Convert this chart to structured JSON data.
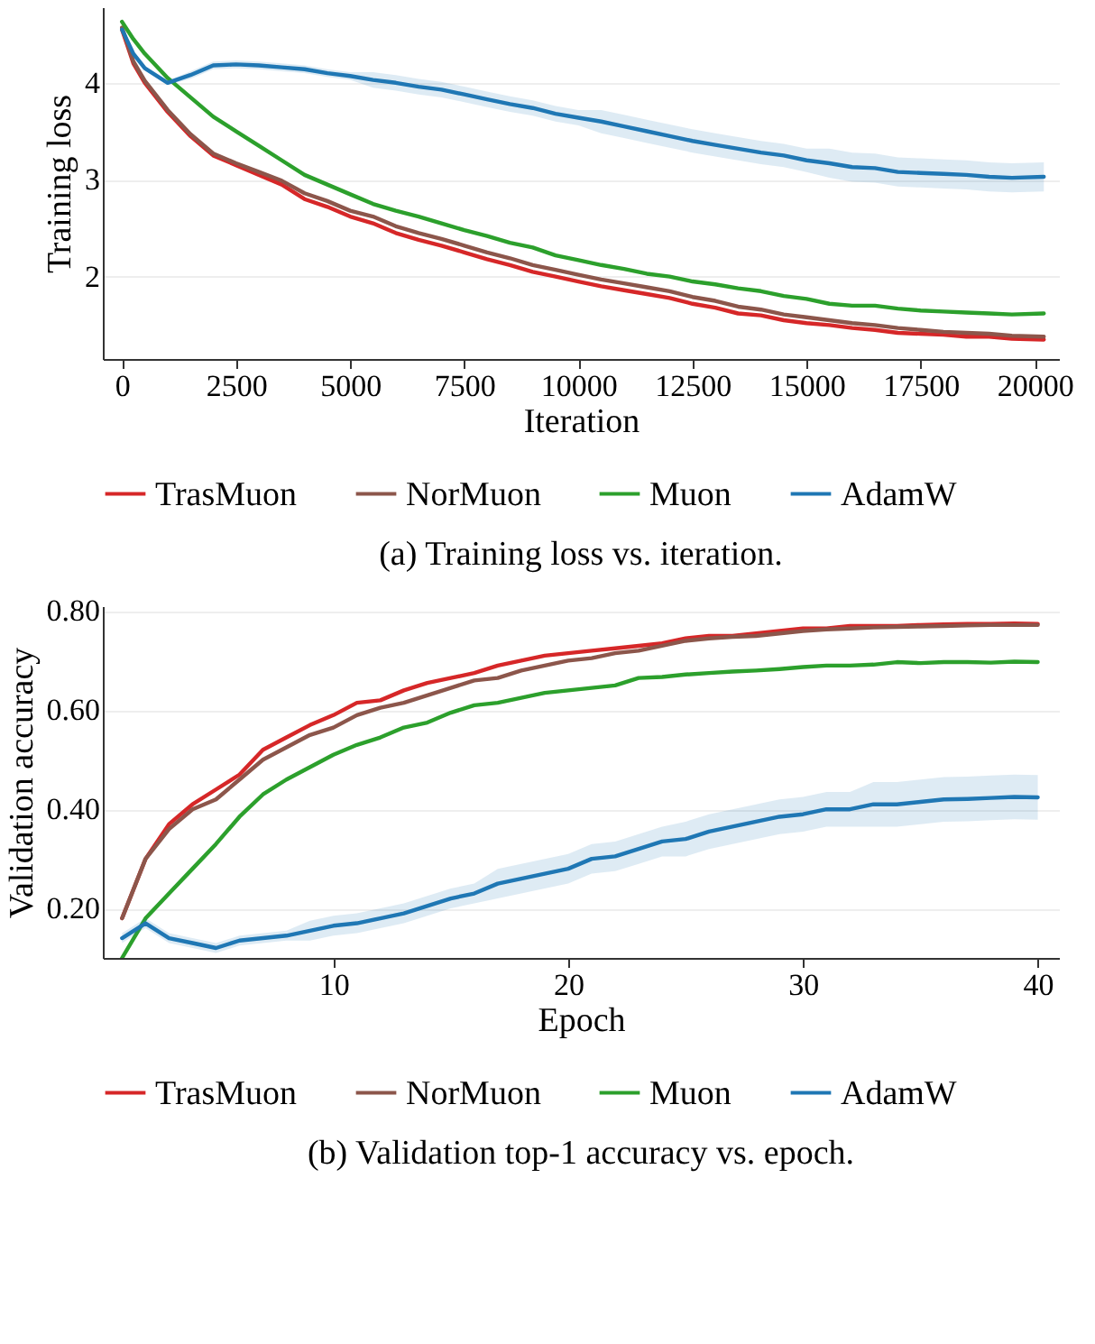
{
  "chart_data": [
    {
      "type": "line",
      "title": "(a) Training loss vs. iteration.",
      "xlabel": "Iteration",
      "ylabel": "Training loss",
      "legend": "bottom",
      "grid": "y",
      "line_style": "solid",
      "x": [
        0,
        250,
        500,
        1000,
        1500,
        2000,
        2500,
        3000,
        3500,
        4000,
        4500,
        5000,
        5500,
        6000,
        6500,
        7000,
        7500,
        8000,
        8500,
        9000,
        9500,
        10000,
        10500,
        11000,
        11500,
        12000,
        12500,
        13000,
        13500,
        14000,
        14500,
        15000,
        15500,
        16000,
        16500,
        17000,
        17500,
        18000,
        18500,
        19000,
        19500,
        20200
      ],
      "xlim": [
        -420,
        20530
      ],
      "xticks": [
        0,
        2500,
        5000,
        7500,
        10000,
        12500,
        15000,
        17500,
        20000
      ],
      "ylim": [
        1.15,
        4.78
      ],
      "yticks": [
        2,
        3,
        4
      ],
      "series": [
        {
          "name": "TrasMuon",
          "color": "#d62728",
          "values": [
            4.55,
            4.2,
            4.0,
            3.7,
            3.45,
            3.25,
            3.15,
            3.05,
            2.95,
            2.8,
            2.72,
            2.62,
            2.55,
            2.45,
            2.38,
            2.32,
            2.25,
            2.18,
            2.12,
            2.05,
            2.0,
            1.95,
            1.9,
            1.86,
            1.82,
            1.78,
            1.72,
            1.68,
            1.62,
            1.6,
            1.55,
            1.52,
            1.5,
            1.47,
            1.45,
            1.42,
            1.41,
            1.4,
            1.38,
            1.38,
            1.36,
            1.35
          ]
        },
        {
          "name": "NorMuon",
          "color": "#8c564b",
          "values": [
            4.57,
            4.22,
            4.02,
            3.72,
            3.47,
            3.27,
            3.17,
            3.08,
            2.99,
            2.86,
            2.78,
            2.68,
            2.62,
            2.52,
            2.45,
            2.39,
            2.32,
            2.25,
            2.19,
            2.12,
            2.07,
            2.02,
            1.97,
            1.93,
            1.89,
            1.85,
            1.79,
            1.75,
            1.69,
            1.66,
            1.61,
            1.58,
            1.55,
            1.52,
            1.5,
            1.47,
            1.45,
            1.43,
            1.42,
            1.41,
            1.39,
            1.38
          ]
        },
        {
          "name": "Muon",
          "color": "#2ca02c",
          "values": [
            4.63,
            4.45,
            4.3,
            4.05,
            3.85,
            3.65,
            3.5,
            3.35,
            3.2,
            3.05,
            2.95,
            2.85,
            2.75,
            2.68,
            2.62,
            2.55,
            2.48,
            2.42,
            2.35,
            2.3,
            2.22,
            2.17,
            2.12,
            2.08,
            2.03,
            2.0,
            1.95,
            1.92,
            1.88,
            1.85,
            1.8,
            1.77,
            1.72,
            1.7,
            1.7,
            1.67,
            1.65,
            1.64,
            1.63,
            1.62,
            1.61,
            1.62
          ]
        },
        {
          "name": "AdamW",
          "color": "#1f77b4",
          "values": [
            4.55,
            4.3,
            4.15,
            4.0,
            4.08,
            4.18,
            4.19,
            4.18,
            4.16,
            4.14,
            4.1,
            4.07,
            4.03,
            4.0,
            3.96,
            3.93,
            3.88,
            3.83,
            3.78,
            3.74,
            3.68,
            3.64,
            3.6,
            3.55,
            3.5,
            3.45,
            3.4,
            3.36,
            3.32,
            3.28,
            3.25,
            3.2,
            3.17,
            3.13,
            3.12,
            3.08,
            3.07,
            3.06,
            3.05,
            3.03,
            3.02,
            3.03
          ],
          "upper": [
            4.57,
            4.32,
            4.17,
            4.02,
            4.12,
            4.22,
            4.23,
            4.22,
            4.2,
            4.18,
            4.14,
            4.11,
            4.11,
            4.08,
            4.04,
            4.01,
            3.96,
            3.91,
            3.86,
            3.82,
            3.76,
            3.72,
            3.72,
            3.67,
            3.62,
            3.57,
            3.52,
            3.48,
            3.44,
            3.4,
            3.37,
            3.32,
            3.32,
            3.28,
            3.27,
            3.23,
            3.22,
            3.21,
            3.2,
            3.18,
            3.17,
            3.18
          ],
          "lower": [
            4.53,
            4.28,
            4.13,
            3.98,
            4.04,
            4.14,
            4.15,
            4.14,
            4.12,
            4.1,
            4.06,
            4.03,
            3.95,
            3.92,
            3.88,
            3.85,
            3.8,
            3.75,
            3.7,
            3.66,
            3.6,
            3.56,
            3.48,
            3.43,
            3.38,
            3.33,
            3.28,
            3.24,
            3.2,
            3.16,
            3.13,
            3.08,
            3.02,
            2.98,
            2.97,
            2.93,
            2.92,
            2.91,
            2.9,
            2.88,
            2.87,
            2.88
          ]
        }
      ]
    },
    {
      "type": "line",
      "title": "(b) Validation top-1 accuracy vs. epoch.",
      "xlabel": "Epoch",
      "ylabel": "Validation accuracy",
      "legend": "bottom",
      "grid": "y",
      "line_style": "solid",
      "x": [
        1,
        2,
        3,
        4,
        5,
        6,
        7,
        8,
        9,
        10,
        11,
        12,
        13,
        14,
        15,
        16,
        17,
        18,
        19,
        20,
        21,
        22,
        23,
        24,
        25,
        26,
        27,
        28,
        29,
        30,
        31,
        32,
        33,
        34,
        35,
        36,
        37,
        38,
        39,
        40
      ],
      "xlim": [
        0.18,
        40.9
      ],
      "xticks": [
        10,
        20,
        30,
        40
      ],
      "ylim": [
        0.1,
        0.81
      ],
      "yticks": [
        {
          "value": 0.2,
          "label": "0.20"
        },
        {
          "value": 0.4,
          "label": "0.40"
        },
        {
          "value": 0.6,
          "label": "0.60"
        },
        {
          "value": 0.8,
          "label": "0.80"
        }
      ],
      "series": [
        {
          "name": "TrasMuon",
          "color": "#d62728",
          "values": [
            0.18,
            0.3,
            0.37,
            0.41,
            0.44,
            0.47,
            0.52,
            0.545,
            0.57,
            0.59,
            0.615,
            0.62,
            0.64,
            0.655,
            0.665,
            0.675,
            0.69,
            0.7,
            0.71,
            0.715,
            0.72,
            0.725,
            0.73,
            0.735,
            0.745,
            0.75,
            0.75,
            0.755,
            0.76,
            0.765,
            0.765,
            0.77,
            0.77,
            0.77,
            0.772,
            0.773,
            0.774,
            0.774,
            0.775,
            0.774
          ]
        },
        {
          "name": "NorMuon",
          "color": "#8c564b",
          "values": [
            0.18,
            0.3,
            0.36,
            0.4,
            0.42,
            0.46,
            0.5,
            0.525,
            0.55,
            0.565,
            0.59,
            0.605,
            0.615,
            0.63,
            0.645,
            0.66,
            0.665,
            0.68,
            0.69,
            0.7,
            0.705,
            0.715,
            0.72,
            0.73,
            0.74,
            0.745,
            0.748,
            0.75,
            0.755,
            0.76,
            0.763,
            0.765,
            0.767,
            0.768,
            0.769,
            0.77,
            0.771,
            0.772,
            0.772,
            0.772
          ]
        },
        {
          "name": "Muon",
          "color": "#2ca02c",
          "values": [
            0.1,
            0.18,
            0.23,
            0.28,
            0.33,
            0.385,
            0.43,
            0.46,
            0.485,
            0.51,
            0.53,
            0.545,
            0.565,
            0.575,
            0.595,
            0.61,
            0.615,
            0.625,
            0.635,
            0.64,
            0.645,
            0.65,
            0.665,
            0.667,
            0.672,
            0.675,
            0.678,
            0.68,
            0.683,
            0.687,
            0.69,
            0.69,
            0.692,
            0.697,
            0.695,
            0.697,
            0.697,
            0.696,
            0.698,
            0.697
          ]
        },
        {
          "name": "AdamW",
          "color": "#1f77b4",
          "values": [
            0.14,
            0.17,
            0.14,
            0.13,
            0.12,
            0.135,
            0.14,
            0.145,
            0.155,
            0.165,
            0.17,
            0.18,
            0.19,
            0.205,
            0.22,
            0.23,
            0.25,
            0.26,
            0.27,
            0.28,
            0.3,
            0.305,
            0.32,
            0.335,
            0.34,
            0.355,
            0.365,
            0.375,
            0.385,
            0.39,
            0.4,
            0.4,
            0.41,
            0.41,
            0.415,
            0.42,
            0.421,
            0.423,
            0.425,
            0.424
          ],
          "upper": [
            0.15,
            0.18,
            0.15,
            0.14,
            0.13,
            0.145,
            0.15,
            0.155,
            0.175,
            0.185,
            0.19,
            0.2,
            0.21,
            0.225,
            0.24,
            0.25,
            0.28,
            0.29,
            0.3,
            0.31,
            0.33,
            0.335,
            0.35,
            0.365,
            0.375,
            0.39,
            0.4,
            0.41,
            0.42,
            0.425,
            0.435,
            0.435,
            0.455,
            0.455,
            0.46,
            0.465,
            0.466,
            0.468,
            0.47,
            0.469
          ],
          "lower": [
            0.13,
            0.16,
            0.13,
            0.12,
            0.11,
            0.125,
            0.13,
            0.135,
            0.135,
            0.145,
            0.15,
            0.16,
            0.17,
            0.185,
            0.2,
            0.21,
            0.22,
            0.23,
            0.24,
            0.25,
            0.27,
            0.275,
            0.29,
            0.305,
            0.305,
            0.32,
            0.33,
            0.34,
            0.35,
            0.355,
            0.365,
            0.365,
            0.365,
            0.365,
            0.37,
            0.375,
            0.376,
            0.378,
            0.38,
            0.379
          ]
        }
      ]
    }
  ]
}
